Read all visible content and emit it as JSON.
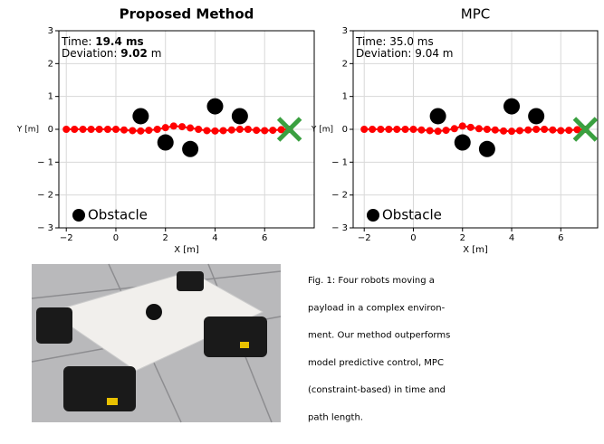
{
  "chart_data": [
    {
      "type": "line",
      "title": "Proposed Method",
      "title_bold": true,
      "xlabel": "X [m]",
      "ylabel": "Y [m]",
      "xlim": [
        -2.3,
        8.0
      ],
      "ylim": [
        -3,
        3
      ],
      "xticks": [
        {
          "value": -2,
          "label": "−2"
        },
        0,
        2,
        4,
        6
      ],
      "yticks": [
        {
          "value": -3,
          "label": "− 3"
        },
        {
          "value": -2,
          "label": "− 2"
        },
        {
          "value": -1,
          "label": "− 1"
        },
        0,
        1,
        2,
        3
      ],
      "grid": true,
      "legend": "lower left",
      "annotation": [
        "Time: ",
        "19.4 ms",
        "Deviation: ",
        "9.02",
        " m"
      ],
      "annotation_bold": [
        false,
        true,
        false,
        true,
        false
      ],
      "series": [
        {
          "color": "#ff0000",
          "x": [
            -2,
            -1.67,
            -1.33,
            -1,
            -0.67,
            -0.33,
            0,
            0.33,
            0.67,
            1,
            1.33,
            1.67,
            2,
            2.33,
            2.67,
            3,
            3.33,
            3.67,
            4,
            4.33,
            4.67,
            5,
            5.33,
            5.67,
            6,
            6.33,
            6.67,
            7
          ],
          "values": [
            0,
            0,
            0,
            0,
            0,
            0,
            0,
            -0.02,
            -0.04,
            -0.05,
            -0.03,
            0,
            0.05,
            0.1,
            0.08,
            0.04,
            0,
            -0.04,
            -0.05,
            -0.04,
            -0.02,
            0,
            0,
            -0.03,
            -0.04,
            -0.03,
            -0.01,
            0
          ]
        },
        {
          "name": "Obstacle",
          "color": "#000000",
          "x": [
            1,
            2,
            3,
            4,
            5
          ],
          "values": [
            0.4,
            -0.4,
            -0.6,
            0.7,
            0.4
          ]
        },
        {
          "color": "#3aa040",
          "x": [
            7
          ],
          "values": [
            0
          ]
        }
      ]
    },
    {
      "type": "line",
      "title": "MPC",
      "title_bold": false,
      "xlabel": "X [m]",
      "ylabel": "Y [m]",
      "xlim": [
        -2.45,
        7.5
      ],
      "ylim": [
        -3,
        3
      ],
      "xticks": [
        {
          "value": -2,
          "label": "−2"
        },
        0,
        2,
        4,
        6
      ],
      "yticks": [
        {
          "value": -3,
          "label": "− 3"
        },
        {
          "value": -2,
          "label": "− 2"
        },
        {
          "value": -1,
          "label": "− 1"
        },
        0,
        1,
        2,
        3
      ],
      "grid": true,
      "legend": "lower left",
      "annotation": [
        "Time: ",
        "35.0 ms",
        "Deviation: ",
        "9.04",
        " m"
      ],
      "annotation_bold": [
        false,
        false,
        false,
        false,
        false
      ],
      "series": [
        {
          "color": "#ff0000",
          "x": [
            -2,
            -1.67,
            -1.33,
            -1,
            -0.67,
            -0.33,
            0,
            0.33,
            0.67,
            1,
            1.33,
            1.67,
            2,
            2.33,
            2.67,
            3,
            3.33,
            3.67,
            4,
            4.33,
            4.67,
            5,
            5.33,
            5.67,
            6,
            6.33,
            6.67,
            7
          ],
          "values": [
            0,
            0,
            0,
            0,
            0,
            0,
            0,
            -0.02,
            -0.04,
            -0.06,
            -0.03,
            0.02,
            0.1,
            0.06,
            0.02,
            0,
            -0.02,
            -0.05,
            -0.06,
            -0.04,
            -0.02,
            0,
            0,
            -0.02,
            -0.04,
            -0.03,
            -0.01,
            0
          ]
        },
        {
          "name": "Obstacle",
          "color": "#000000",
          "x": [
            1,
            2,
            3,
            4,
            5
          ],
          "values": [
            0.4,
            -0.4,
            -0.6,
            0.7,
            0.4
          ]
        },
        {
          "color": "#3aa040",
          "x": [
            7
          ],
          "values": [
            0
          ]
        }
      ]
    }
  ],
  "caption": [
    "Fig. 1: Four robots moving a",
    "payload in a complex environ-",
    "ment. Our method outperforms",
    "model predictive control, MPC",
    "(constraint-based) in time and",
    "path length."
  ]
}
